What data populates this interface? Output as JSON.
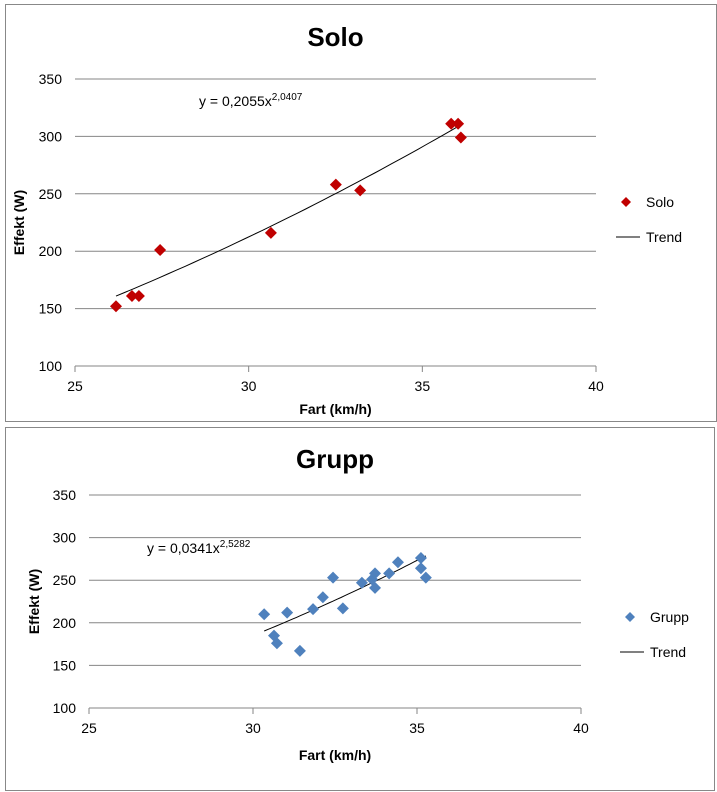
{
  "chart_data": [
    {
      "type": "scatter",
      "title": "Solo",
      "xlabel": "Fart (km/h)",
      "ylabel": "Effekt (W)",
      "xlim": [
        25,
        40
      ],
      "ylim": [
        100,
        350
      ],
      "xticks": [
        25,
        30,
        35,
        40
      ],
      "yticks": [
        100,
        150,
        200,
        250,
        300,
        350
      ],
      "grid": "horizontal",
      "legend": "right",
      "series_name": "Solo",
      "trend_name": "Trend",
      "color": "#C00000",
      "equation": "y = 0,2055x",
      "equation_exp": "2,0407",
      "trend": {
        "a": 0.2055,
        "b": 2.0407,
        "xrange": [
          26.18,
          36.11
        ]
      },
      "x": [
        26.18,
        26.64,
        26.84,
        27.45,
        30.64,
        32.51,
        33.21,
        35.83,
        36.03,
        36.11
      ],
      "y": [
        152,
        161,
        161,
        201,
        216,
        258,
        253,
        311,
        311,
        299
      ]
    },
    {
      "type": "scatter",
      "title": "Grupp",
      "xlabel": "Fart (km/h)",
      "ylabel": "Effekt (W)",
      "xlim": [
        25,
        40
      ],
      "ylim": [
        100,
        350
      ],
      "xticks": [
        25,
        30,
        35,
        40
      ],
      "yticks": [
        100,
        150,
        200,
        250,
        300,
        350
      ],
      "grid": "horizontal",
      "legend": "right",
      "series_name": "Grupp",
      "trend_name": "Trend",
      "color": "#4F81BD",
      "equation": "y = 0,0341x",
      "equation_exp": "2,5282",
      "trend": {
        "a": 0.0341,
        "b": 2.5282,
        "xrange": [
          30.34,
          35.27
        ]
      },
      "x": [
        30.34,
        30.64,
        30.73,
        31.04,
        31.43,
        31.83,
        32.13,
        32.44,
        32.74,
        33.32,
        33.63,
        33.72,
        33.72,
        34.15,
        34.42,
        35.12,
        35.12,
        35.27
      ],
      "y": [
        210,
        185,
        176,
        212,
        167,
        216,
        230,
        253,
        217,
        247,
        251,
        258,
        241,
        258,
        271,
        276,
        264,
        253
      ]
    }
  ]
}
